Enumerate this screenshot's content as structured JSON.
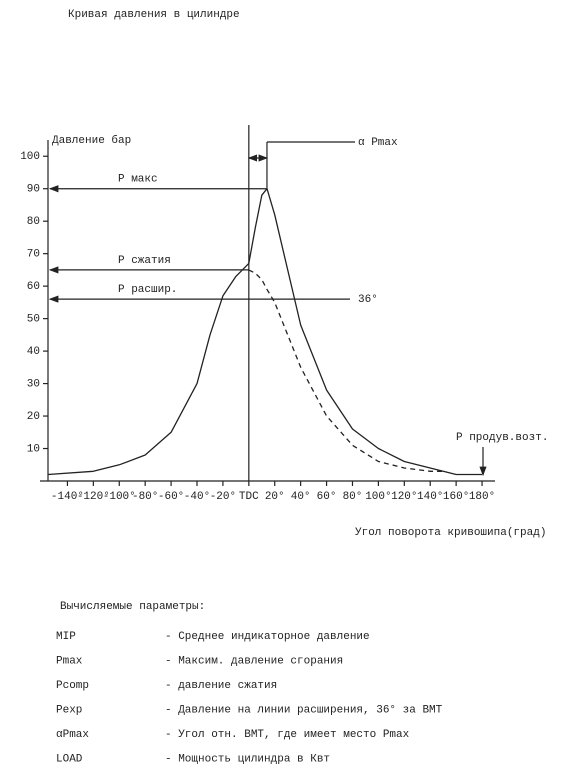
{
  "document": {
    "title": "Кривая давления в цилиндре",
    "params_title": "Вычисляемые параметры:",
    "params": [
      [
        "MIP",
        "- Среднее индикаторное давление"
      ],
      [
        "Pmax",
        "- Максим. давление сгорания"
      ],
      [
        "Pcomp",
        "- давление сжатия"
      ],
      [
        "Pexp",
        "- Давление на линии расширения, 36° за ВМТ"
      ],
      [
        "αPmax",
        "- Угол отн. ВМТ, где имеет место Pmax"
      ],
      [
        "LOAD",
        "- Мощность цилиндра в Квт"
      ]
    ]
  },
  "chart_data": {
    "type": "line",
    "y_label": "Давление бар",
    "x_label": "Угол поворота кривошипа(град)",
    "x": [
      -155,
      -120,
      -100,
      -80,
      -60,
      -40,
      -30,
      -20,
      -10,
      0,
      5,
      10,
      14,
      20,
      30,
      40,
      60,
      80,
      100,
      120,
      140,
      150,
      160,
      180
    ],
    "series": [
      {
        "name": "P",
        "color": "#222",
        "dashed": false,
        "values": [
          2,
          3,
          5,
          8,
          15,
          30,
          45,
          57,
          63,
          67,
          78,
          88,
          90,
          82,
          65,
          48,
          28,
          16,
          10,
          6,
          4,
          3,
          2,
          2
        ]
      },
      {
        "name": "P сжатия",
        "color": "#222",
        "dashed": true,
        "values": [
          null,
          null,
          null,
          null,
          null,
          null,
          null,
          null,
          null,
          65,
          64,
          62,
          59,
          55,
          45,
          35,
          20,
          11,
          6,
          4,
          3,
          3,
          null,
          null
        ]
      }
    ],
    "annotations": [
      {
        "label": "P макс",
        "value": 90,
        "x": 14
      },
      {
        "label": "P сжатия",
        "value": 65,
        "x": 0
      },
      {
        "label": "P расшир.",
        "value": 56,
        "x": 36,
        "note": "36°"
      }
    ],
    "peak_label": "α Pmax",
    "scavenge_label": "P продув.возт.",
    "xlim": [
      -155,
      190
    ],
    "ylim": [
      0,
      105
    ],
    "xticks": [
      {
        "value": -140,
        "label": "-140°"
      },
      {
        "value": -120,
        "label": "-120°"
      },
      {
        "value": -100,
        "label": "-100°"
      },
      {
        "value": -80,
        "label": "-80°"
      },
      {
        "value": -60,
        "label": "-60°"
      },
      {
        "value": -40,
        "label": "-40°"
      },
      {
        "value": -20,
        "label": "-20°"
      },
      {
        "value": 0,
        "label": "TDC"
      },
      {
        "value": 20,
        "label": "20°"
      },
      {
        "value": 40,
        "label": "40°"
      },
      {
        "value": 60,
        "label": "60°"
      },
      {
        "value": 80,
        "label": "80°"
      },
      {
        "value": 100,
        "label": "100°"
      },
      {
        "value": 120,
        "label": "120°"
      },
      {
        "value": 140,
        "label": "140°"
      },
      {
        "value": 160,
        "label": "160°"
      },
      {
        "value": 180,
        "label": "180°"
      }
    ],
    "yticks": [
      10,
      20,
      30,
      40,
      50,
      60,
      70,
      80,
      90,
      100
    ]
  }
}
